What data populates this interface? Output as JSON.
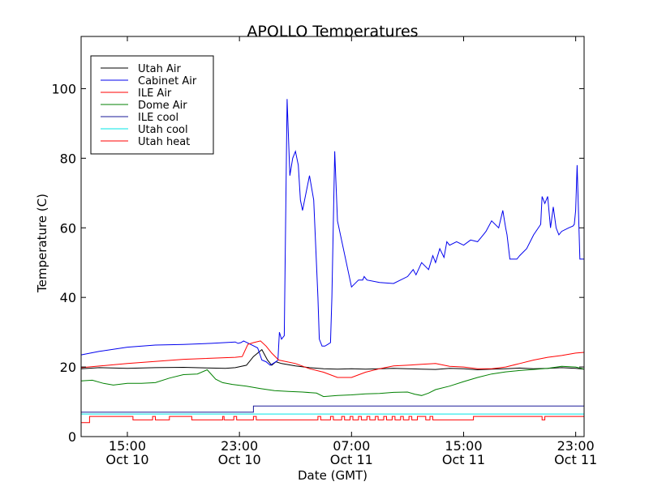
{
  "chart_data": {
    "type": "line",
    "title": "APOLLO Temperatures",
    "xlabel": "Date (GMT)",
    "ylabel": "Temperature (C)",
    "x_unit": "hours since Oct 10 00:00 GMT",
    "xlim": [
      11.7,
      47.6
    ],
    "ylim": [
      0,
      115
    ],
    "x_ticks": [
      {
        "x": 15,
        "line1": "15:00",
        "line2": "Oct 10"
      },
      {
        "x": 23,
        "line1": "23:00",
        "line2": "Oct 10"
      },
      {
        "x": 31,
        "line1": "07:00",
        "line2": "Oct 11"
      },
      {
        "x": 39,
        "line1": "15:00",
        "line2": "Oct 11"
      },
      {
        "x": 47,
        "line1": "23:00",
        "line2": "Oct 11"
      }
    ],
    "y_ticks": [
      0,
      20,
      40,
      60,
      80,
      100
    ],
    "legend_position": "top-left",
    "series": [
      {
        "name": "Utah Air",
        "color": "#000000",
        "x": [
          11.7,
          13,
          15,
          17,
          19,
          21,
          22,
          22.7,
          23.5,
          24,
          24.6,
          25.0,
          25.3,
          25.6,
          26,
          27,
          28,
          29,
          30,
          31,
          32,
          33,
          34,
          35,
          36,
          37,
          38,
          39,
          40,
          41,
          42,
          43,
          44,
          45,
          46,
          47,
          47.6
        ],
        "values": [
          19.5,
          19.8,
          19.6,
          19.8,
          19.9,
          19.7,
          19.6,
          19.8,
          20.5,
          23,
          25,
          22,
          20.5,
          21.5,
          21,
          20.3,
          19.8,
          19.5,
          19.4,
          19.5,
          19.4,
          19.5,
          19.6,
          19.5,
          19.4,
          19.3,
          19.6,
          19.5,
          19.2,
          19.4,
          19.5,
          19.7,
          19.5,
          19.6,
          19.8,
          19.6,
          19.4
        ]
      },
      {
        "name": "Cabinet Air",
        "color": "#0000ee",
        "x": [
          11.7,
          13,
          15,
          17,
          19,
          21,
          22.7,
          22.9,
          23.1,
          23.3,
          23.8,
          24.3,
          24.6,
          24.9,
          25.2,
          25.6,
          25.75,
          25.85,
          26.0,
          26.2,
          26.4,
          26.6,
          26.8,
          27.0,
          27.2,
          27.35,
          27.5,
          28.0,
          28.3,
          28.6,
          28.7,
          28.8,
          28.9,
          29.1,
          29.3,
          29.5,
          29.6,
          29.8,
          30,
          31,
          31.5,
          31.8,
          31.9,
          32.1,
          33,
          34,
          35,
          35.4,
          35.6,
          36,
          36.5,
          36.8,
          37,
          37.3,
          37.6,
          37.8,
          38,
          38.5,
          39,
          39.5,
          40,
          40.4,
          40.6,
          41,
          41.5,
          41.8,
          42,
          42.1,
          42.3,
          42.5,
          42.8,
          43,
          43.5,
          44,
          44.5,
          44.6,
          44.8,
          45,
          45.2,
          45.4,
          45.6,
          45.8,
          46,
          46.5,
          46.8,
          46.9,
          47.0,
          47.1,
          47.3,
          47.6
        ],
        "values": [
          23.5,
          24.5,
          25.7,
          26.3,
          26.5,
          26.8,
          27.2,
          26.8,
          27,
          27.5,
          26.5,
          25.5,
          22,
          21.5,
          20.5,
          21.5,
          22,
          30,
          28,
          29,
          97,
          75,
          80,
          82,
          78,
          68,
          65,
          75,
          68,
          40,
          28,
          27,
          26,
          26,
          26.5,
          27,
          40,
          82,
          62,
          43,
          45,
          45,
          46,
          45,
          44.3,
          44,
          46,
          48,
          46.5,
          50,
          48,
          52,
          50,
          54,
          51.5,
          56,
          55,
          56,
          55,
          56.5,
          56,
          58,
          59,
          62,
          60,
          65,
          60,
          58,
          51,
          51,
          51,
          52,
          54,
          58,
          61,
          69,
          67,
          69,
          60,
          66,
          60,
          58,
          59,
          60,
          60.5,
          61,
          65,
          78,
          51,
          51
        ]
      },
      {
        "name": "ILE Air",
        "color": "#ff0000",
        "x": [
          11.7,
          15,
          19,
          22.7,
          23.2,
          23.6,
          24.0,
          24.5,
          24.9,
          25.3,
          25.8,
          27,
          28,
          29,
          30,
          31,
          32,
          33,
          34,
          35,
          36,
          37,
          38,
          39,
          40,
          41,
          42,
          43,
          44,
          45,
          46,
          47,
          47.6
        ],
        "values": [
          19.8,
          21,
          22.2,
          22.8,
          23,
          26.5,
          27,
          27.5,
          26,
          24,
          22,
          21,
          19.5,
          18.5,
          17,
          17,
          18.5,
          19.5,
          20.3,
          20.5,
          20.8,
          21,
          20.2,
          20,
          19.5,
          19.5,
          20,
          21,
          22,
          22.8,
          23.3,
          24,
          24.2
        ]
      },
      {
        "name": "Dome Air",
        "color": "#008000",
        "x": [
          11.7,
          12.5,
          13.3,
          14,
          15,
          16,
          17,
          18,
          19,
          20,
          20.7,
          21.3,
          21.8,
          22.5,
          23.5,
          24.5,
          25.5,
          26.5,
          27.5,
          28.5,
          29,
          30,
          31,
          32,
          33,
          34,
          35,
          35.5,
          36,
          36.5,
          37,
          38,
          39,
          40,
          41,
          42,
          43,
          44,
          45,
          46,
          47,
          47.6
        ],
        "values": [
          16,
          16.2,
          15.3,
          14.8,
          15.3,
          15.3,
          15.5,
          16.8,
          17.8,
          18,
          19.2,
          16.5,
          15.5,
          15,
          14.5,
          13.8,
          13.2,
          13,
          12.8,
          12.5,
          11.5,
          11.8,
          12,
          12.3,
          12.4,
          12.7,
          12.8,
          12.2,
          11.8,
          12.5,
          13.5,
          14.5,
          15.8,
          17,
          18,
          18.6,
          19,
          19.3,
          19.6,
          20.2,
          20,
          19.4
        ]
      },
      {
        "name": "ILE cool",
        "color": "#1a1a99",
        "x": [
          11.7,
          24.0,
          24.0,
          47.6
        ],
        "values": [
          7,
          7,
          8.8,
          8.8
        ]
      },
      {
        "name": "Utah cool",
        "color": "#00e5e5",
        "x": [
          11.7,
          47.6
        ],
        "values": [
          6.5,
          6.5
        ]
      },
      {
        "name": "Utah heat",
        "color": "#ff0000",
        "x": [
          11.7,
          12.3,
          12.3,
          15.4,
          15.4,
          16.8,
          16.8,
          17.0,
          17.0,
          18.0,
          18.0,
          19.6,
          19.6,
          21.8,
          21.8,
          21.9,
          21.9,
          22.6,
          22.6,
          22.8,
          22.8,
          24.0,
          24.0,
          24.2,
          24.2,
          28.6,
          28.6,
          28.8,
          28.8,
          29.5,
          29.5,
          29.7,
          29.7,
          30.3,
          30.3,
          30.5,
          30.5,
          30.9,
          30.9,
          31.1,
          31.1,
          31.5,
          31.5,
          31.7,
          31.7,
          32.1,
          32.1,
          32.3,
          32.3,
          32.7,
          32.7,
          32.9,
          32.9,
          33.3,
          33.3,
          33.5,
          33.5,
          33.9,
          33.9,
          34.1,
          34.1,
          34.5,
          34.5,
          34.7,
          34.7,
          35.1,
          35.1,
          35.3,
          35.3,
          35.7,
          35.7,
          36.3,
          36.3,
          36.6,
          36.6,
          36.8,
          36.8,
          39.7,
          39.7,
          44.6,
          44.6,
          44.8,
          44.8,
          47.6
        ],
        "values": [
          4,
          4,
          5.8,
          5.8,
          4.8,
          4.8,
          5.8,
          5.8,
          4.8,
          4.8,
          5.8,
          5.8,
          4.8,
          4.8,
          5.8,
          5.8,
          4.8,
          4.8,
          5.8,
          5.8,
          4.8,
          4.8,
          5.8,
          5.8,
          4.8,
          4.8,
          5.8,
          5.8,
          4.8,
          4.8,
          5.8,
          5.8,
          4.8,
          4.8,
          5.8,
          5.8,
          4.8,
          4.8,
          5.8,
          5.8,
          4.8,
          4.8,
          5.8,
          5.8,
          4.8,
          4.8,
          5.8,
          5.8,
          4.8,
          4.8,
          5.8,
          5.8,
          4.8,
          4.8,
          5.8,
          5.8,
          4.8,
          4.8,
          5.8,
          5.8,
          4.8,
          4.8,
          5.8,
          5.8,
          4.8,
          4.8,
          5.8,
          5.8,
          4.8,
          4.8,
          5.8,
          5.8,
          4.8,
          4.8,
          5.8,
          5.8,
          4.8,
          4.8,
          5.8,
          5.8,
          4.8,
          4.8,
          5.8,
          5.8
        ]
      }
    ]
  }
}
